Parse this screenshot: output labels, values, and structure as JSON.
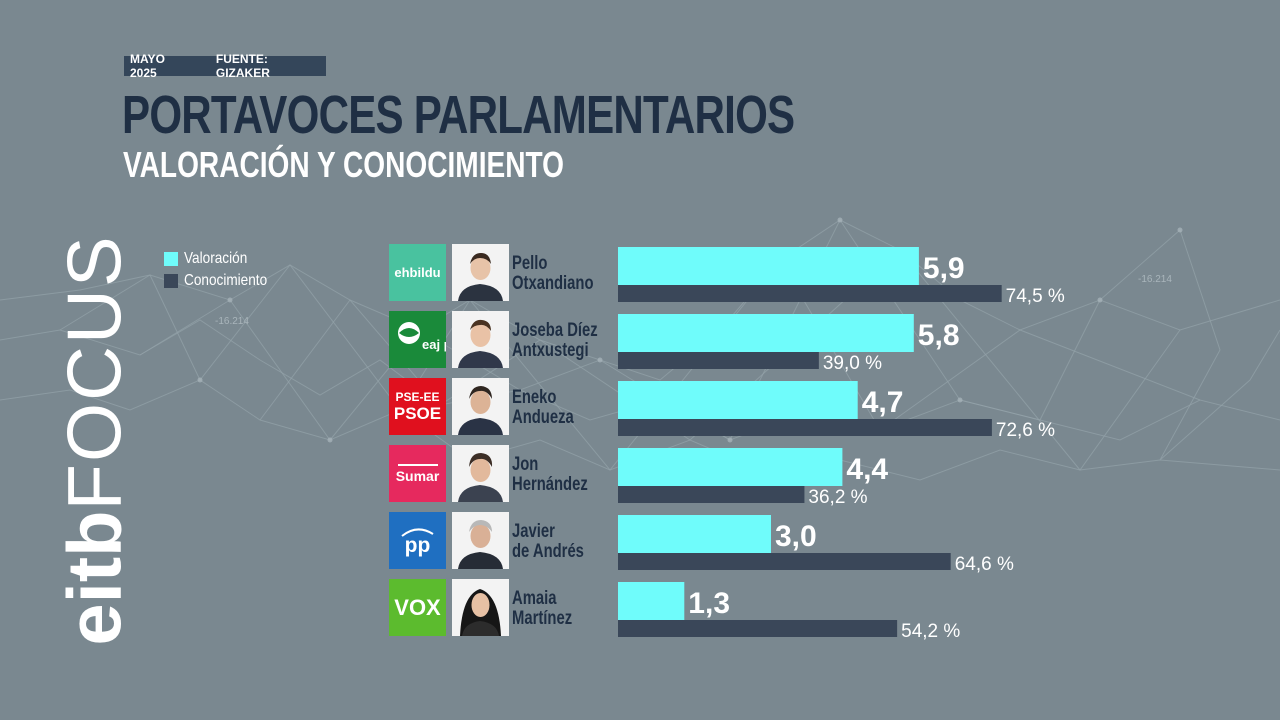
{
  "header": {
    "date": "MAYO 2025",
    "source": "FUENTE: GIZAKER",
    "title": "PORTAVOCES PARLAMENTARIOS",
    "subtitle": "VALORACIÓN Y CONOCIMIENTO"
  },
  "brand": {
    "part1": "eitb",
    "part2": "FOCUS"
  },
  "background_labels": [
    "-16.214",
    "-16.214"
  ],
  "colors": {
    "valoracion": "#6ffcfb",
    "conocimiento": "#3a4759",
    "title": "#1f2f44",
    "background": "#7a8890"
  },
  "chart_data": {
    "type": "bar",
    "orientation": "horizontal",
    "title": "PORTAVOCES PARLAMENTARIOS",
    "subtitle": "VALORACIÓN Y CONOCIMIENTO",
    "legend_position": "left",
    "categories": [
      "Pello Otxandiano",
      "Joseba Díez Antxustegi",
      "Eneko Andueza",
      "Jon Hernández",
      "Javier de Andrés",
      "Amaia Martínez"
    ],
    "series": [
      {
        "name": "Valoración",
        "values": [
          5.9,
          5.8,
          4.7,
          4.4,
          3.0,
          1.3
        ],
        "labels": [
          "5,9",
          "5,8",
          "4,7",
          "4,4",
          "3,0",
          "1,3"
        ]
      },
      {
        "name": "Conocimiento",
        "values": [
          74.5,
          39.0,
          72.6,
          36.2,
          64.6,
          54.2
        ],
        "labels": [
          "74,5 %",
          "39,0 %",
          "72,6 %",
          "36,2 %",
          "64,6 %",
          "54,2 %"
        ]
      }
    ]
  },
  "rows": [
    {
      "party": "ehbildu",
      "party_color": "#49c29f",
      "name_line1": "Pello",
      "name_line2": "Otxandiano"
    },
    {
      "party": "eaj pnv",
      "party_color": "#1a8a3a",
      "name_line1": "Joseba Díez",
      "name_line2": "Antxustegi"
    },
    {
      "party": "PSE-EE PSOE",
      "party_line1": "PSE-EE",
      "party_line2": "PSOE",
      "party_color": "#e0101e",
      "name_line1": "Eneko",
      "name_line2": "Andueza"
    },
    {
      "party": "Sumar",
      "party_color": "#e6295e",
      "name_line1": "Jon",
      "name_line2": "Hernández"
    },
    {
      "party": "pp",
      "party_color": "#1f6fc1",
      "name_line1": "Javier",
      "name_line2": "de Andrés"
    },
    {
      "party": "VOX",
      "party_color": "#5cbb2e",
      "name_line1": "Amaia",
      "name_line2": "Martínez"
    }
  ]
}
